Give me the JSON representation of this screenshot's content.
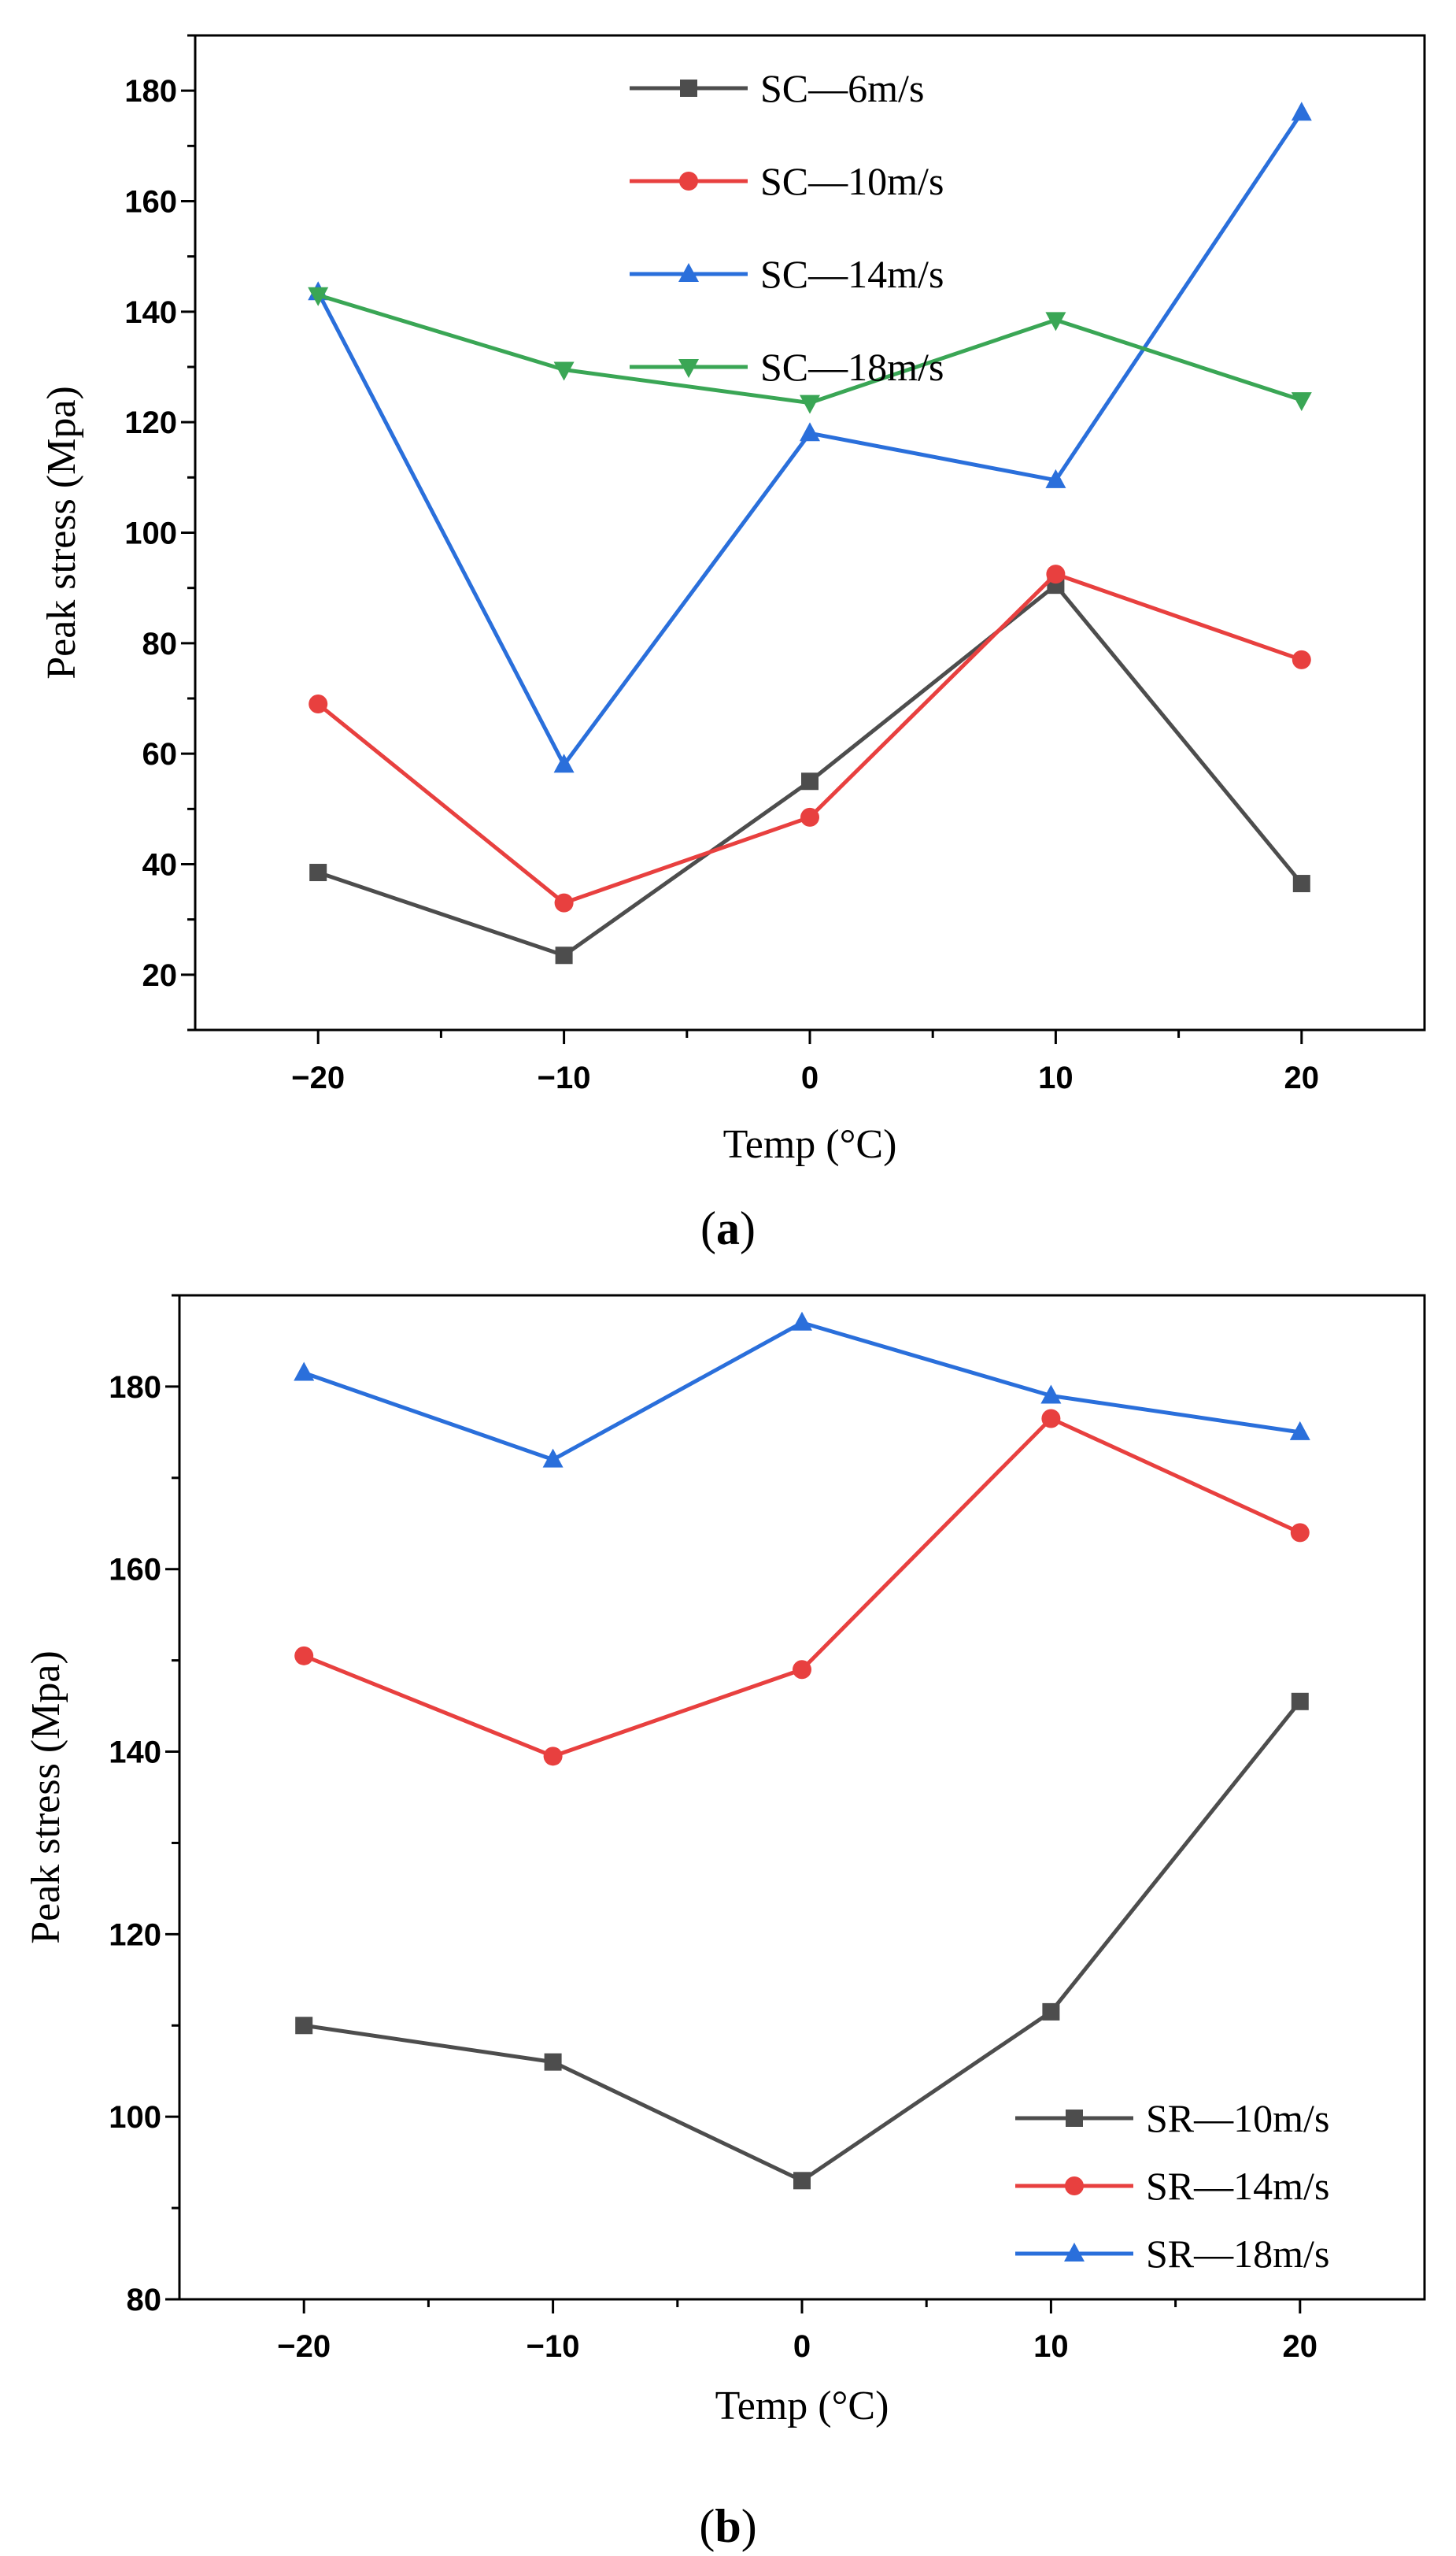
{
  "chart_data": [
    {
      "type": "line",
      "panel": "a",
      "xlabel": "Temp (°C)",
      "ylabel": "Peak stress (Mpa)",
      "x": [
        -20,
        -10,
        0,
        10,
        20
      ],
      "xticks": [
        "−20",
        "−10",
        "0",
        "10",
        "20"
      ],
      "yticks": [
        20,
        40,
        60,
        80,
        100,
        120,
        140,
        160,
        180
      ],
      "xlim": [
        -25,
        25
      ],
      "ylim": [
        10,
        190
      ],
      "legend_position": "top-center",
      "series": [
        {
          "name": "SC—6m/s",
          "color": "#4d4d4d",
          "marker": "square",
          "values": [
            38.5,
            23.5,
            55,
            90.5,
            36.5
          ]
        },
        {
          "name": "SC—10m/s",
          "color": "#e8403f",
          "marker": "circle",
          "values": [
            69,
            33,
            48.5,
            92.5,
            77
          ]
        },
        {
          "name": "SC—14m/s",
          "color": "#2a6fdb",
          "marker": "triangle-up",
          "values": [
            143.5,
            58,
            118,
            109.5,
            176
          ]
        },
        {
          "name": "SC—18m/s",
          "color": "#3aa655",
          "marker": "triangle-down",
          "values": [
            143,
            129.5,
            123.5,
            138.5,
            124
          ]
        }
      ]
    },
    {
      "type": "line",
      "panel": "b",
      "xlabel": "Temp (°C)",
      "ylabel": "Peak stress (Mpa)",
      "x": [
        -20,
        -10,
        0,
        10,
        20
      ],
      "xticks": [
        "−20",
        "−10",
        "0",
        "10",
        "20"
      ],
      "yticks": [
        80,
        100,
        120,
        140,
        160,
        180
      ],
      "xlim": [
        -25,
        25
      ],
      "ylim": [
        80,
        190
      ],
      "legend_position": "bottom-right",
      "series": [
        {
          "name": "SR—10m/s",
          "color": "#4d4d4d",
          "marker": "square",
          "values": [
            110,
            106,
            93,
            111.5,
            145.5
          ]
        },
        {
          "name": "SR—14m/s",
          "color": "#e8403f",
          "marker": "circle",
          "values": [
            150.5,
            139.5,
            149,
            176.5,
            164
          ]
        },
        {
          "name": "SR—18m/s",
          "color": "#2a6fdb",
          "marker": "triangle-up",
          "values": [
            181.5,
            172,
            187,
            179,
            175
          ]
        }
      ]
    }
  ],
  "panels": {
    "a": {
      "label_open": "(",
      "label_letter": "a",
      "label_close": ")"
    },
    "b": {
      "label_open": "(",
      "label_letter": "b",
      "label_close": ")"
    }
  }
}
